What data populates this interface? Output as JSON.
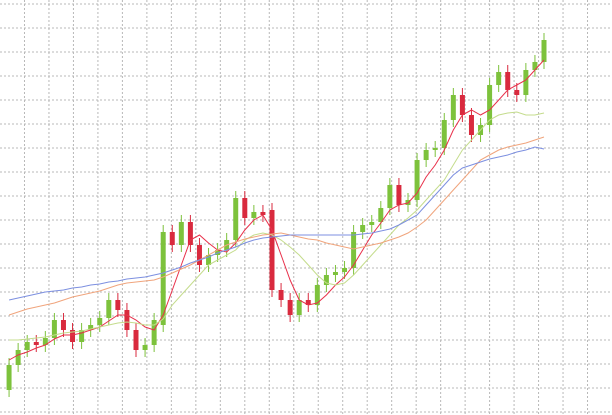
{
  "chart_data": {
    "type": "candlestick",
    "x": [
      0,
      1,
      2,
      3,
      4,
      5,
      6,
      7,
      8,
      9,
      10,
      11,
      12,
      13,
      14,
      15,
      16,
      17,
      18,
      19,
      20,
      21,
      22,
      23,
      24,
      25,
      26,
      27,
      28,
      29,
      30,
      31,
      32,
      33,
      34,
      35,
      36,
      37,
      38,
      39,
      40,
      41,
      42,
      43,
      44,
      45,
      46,
      47,
      48,
      49,
      50,
      51,
      52,
      53,
      54,
      55,
      56,
      57,
      58,
      59
    ],
    "open": [
      25,
      50,
      65,
      73,
      70,
      77,
      95,
      85,
      73,
      85,
      90,
      97,
      115,
      105,
      85,
      65,
      70,
      90,
      183,
      170,
      193,
      170,
      150,
      160,
      165,
      175,
      217,
      197,
      203,
      205,
      125,
      115,
      100,
      115,
      110,
      130,
      140,
      143,
      147,
      183,
      190,
      193,
      207,
      230,
      210,
      215,
      255,
      265,
      267,
      295,
      320,
      300,
      280,
      290,
      330,
      343,
      325,
      320,
      345,
      353
    ],
    "high": [
      57,
      72,
      80,
      80,
      84,
      102,
      102,
      92,
      92,
      97,
      104,
      122,
      122,
      112,
      92,
      77,
      102,
      190,
      190,
      200,
      200,
      177,
      167,
      172,
      182,
      224,
      224,
      210,
      210,
      212,
      132,
      122,
      122,
      122,
      137,
      147,
      150,
      154,
      190,
      197,
      200,
      214,
      237,
      237,
      222,
      262,
      272,
      274,
      302,
      327,
      327,
      307,
      297,
      337,
      350,
      350,
      332,
      352,
      360,
      382
    ],
    "low": [
      18,
      43,
      58,
      63,
      63,
      70,
      78,
      66,
      66,
      78,
      83,
      90,
      98,
      78,
      58,
      58,
      63,
      83,
      163,
      163,
      163,
      143,
      143,
      153,
      158,
      168,
      190,
      190,
      193,
      118,
      108,
      93,
      93,
      103,
      103,
      123,
      133,
      136,
      140,
      176,
      183,
      186,
      200,
      203,
      203,
      208,
      248,
      258,
      260,
      288,
      293,
      273,
      273,
      283,
      323,
      318,
      313,
      313,
      338,
      346
    ],
    "close": [
      50,
      65,
      73,
      70,
      77,
      95,
      85,
      73,
      85,
      90,
      97,
      115,
      105,
      85,
      65,
      70,
      95,
      183,
      170,
      193,
      170,
      150,
      160,
      165,
      175,
      217,
      197,
      203,
      200,
      125,
      115,
      100,
      115,
      110,
      130,
      140,
      143,
      147,
      183,
      190,
      193,
      207,
      230,
      210,
      215,
      255,
      265,
      267,
      295,
      320,
      300,
      280,
      290,
      330,
      343,
      325,
      320,
      345,
      353,
      375
    ],
    "up_color": "#7dc23c",
    "down_color": "#d92a3e",
    "moving_averages": [
      {
        "color": "#e8304a",
        "values": [
          55,
          60,
          63,
          67,
          70,
          76,
          80,
          80,
          82,
          85,
          88,
          94,
          100,
          100,
          95,
          88,
          85,
          100,
          125,
          150,
          175,
          180,
          172,
          165,
          163,
          172,
          185,
          195,
          200,
          185,
          160,
          135,
          115,
          110,
          112,
          120,
          130,
          138,
          150,
          165,
          180,
          192,
          205,
          210,
          212,
          222,
          238,
          250,
          265,
          285,
          300,
          305,
          300,
          305,
          315,
          325,
          330,
          335,
          345,
          355
        ]
      },
      {
        "color": "#c4dc8c",
        "values": [
          75,
          75,
          76,
          77,
          78,
          80,
          82,
          83,
          84,
          86,
          88,
          90,
          92,
          93,
          92,
          90,
          90,
          96,
          110,
          120,
          130,
          140,
          150,
          155,
          160,
          165,
          175,
          180,
          182,
          180,
          175,
          168,
          160,
          150,
          140,
          132,
          130,
          132,
          140,
          150,
          160,
          170,
          180,
          190,
          197,
          205,
          215,
          225,
          235,
          250,
          265,
          275,
          285,
          295,
          300,
          302,
          303,
          300,
          300,
          302
        ]
      },
      {
        "color": "#f0a47c",
        "values": [
          100,
          103,
          106,
          108,
          110,
          112,
          115,
          118,
          120,
          122,
          124,
          127,
          130,
          132,
          133,
          134,
          135,
          138,
          142,
          146,
          150,
          155,
          160,
          165,
          170,
          173,
          176,
          178,
          180,
          181,
          182,
          180,
          178,
          176,
          175,
          172,
          170,
          168,
          166,
          168,
          170,
          172,
          175,
          178,
          182,
          188,
          195,
          205,
          215,
          225,
          235,
          245,
          255,
          260,
          265,
          268,
          270,
          272,
          275,
          278
        ]
      },
      {
        "color": "#7c8fe0",
        "values": [
          115,
          117,
          119,
          121,
          123,
          124,
          125,
          127,
          128,
          130,
          131,
          133,
          134,
          136,
          137,
          138,
          140,
          142,
          145,
          148,
          152,
          155,
          158,
          162,
          165,
          168,
          172,
          175,
          177,
          178,
          179,
          180,
          180,
          180,
          180,
          180,
          180,
          180,
          180,
          181,
          182,
          184,
          186,
          190,
          195,
          200,
          210,
          220,
          230,
          240,
          247,
          250,
          253,
          256,
          258,
          260,
          263,
          265,
          268,
          266
        ]
      }
    ],
    "xlim": [
      -1,
      66.5
    ],
    "xticks": [
      1.7,
      4.4,
      7.1,
      9.8,
      12.5,
      15.2,
      17.9,
      20.6,
      23.3,
      26,
      28.7,
      31.4,
      34.1,
      36.8,
      39.5,
      42.2,
      44.9,
      47.6,
      50.3,
      53,
      55.7,
      58.4,
      61.1,
      63.8
    ],
    "ylim": [
      0,
      415
    ],
    "yticks": [
      3,
      27,
      51,
      75,
      99,
      123,
      147,
      171,
      195,
      219,
      243,
      267,
      291,
      315,
      339,
      363,
      387,
      411
    ],
    "grid": true
  }
}
